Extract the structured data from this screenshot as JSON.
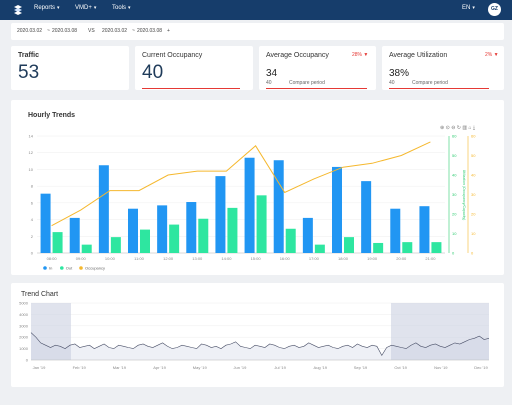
{
  "nav": {
    "reports": "Reports",
    "vmd": "VMD+",
    "tools": "Tools",
    "lang": "EN",
    "avatar": "GZ"
  },
  "filter": {
    "range1_start": "2020.03.02",
    "range1_sep": "~",
    "range1_end": "2020.03.08",
    "vs": "VS",
    "range2_start": "2020.03.02",
    "range2_sep": "~",
    "range2_end": "2020.03.08",
    "plus": "+"
  },
  "cards": {
    "traffic": {
      "title": "Traffic",
      "value": "53"
    },
    "current": {
      "title": "Current Occupancy",
      "value": "40"
    },
    "avg_occ": {
      "title": "Average Occupancy",
      "value": "34",
      "sub": "40",
      "compare": "Compare period",
      "pct": "28%"
    },
    "avg_util": {
      "title": "Average Utilization",
      "value": "38%",
      "sub": "40",
      "compare": "Compare period",
      "pct": "2%"
    }
  },
  "colors": {
    "in": "#2196f3",
    "out": "#2ee6a0",
    "occupancy": "#f5b82e",
    "alert": "#e53935",
    "nav": "#163d6b",
    "trend_fill": "#c7ccdf",
    "trend_line": "#4a5068"
  },
  "hourly": {
    "title": "Hourly Trends",
    "toolbox_icons": [
      "zoom-in-icon",
      "zoom-reset-icon",
      "zoom-out-icon",
      "restore-icon",
      "bar-chart-icon",
      "home-icon",
      "save-icon"
    ]
  },
  "trend": {
    "title": "Trend Chart"
  },
  "chart_data": [
    {
      "type": "bar",
      "title": "Hourly Trends",
      "categories": [
        "08:00",
        "09:00",
        "10:00",
        "11:00",
        "12:00",
        "13:00",
        "14:00",
        "15:00",
        "16:00",
        "17:00",
        "18:00",
        "19:00",
        "20:00",
        "21:00"
      ],
      "tick_labels": [
        "08:00",
        "09:00",
        "10:00",
        "11:00",
        "12:00",
        "13:00",
        "14:00",
        "15:00",
        "16:00",
        "17:00",
        "18:00",
        "19:00",
        "20:00",
        "21:00"
      ],
      "series": [
        {
          "name": "In",
          "type": "bar",
          "axis": "left",
          "values": [
            7.1,
            4.2,
            10.5,
            5.3,
            5.7,
            6.1,
            9.2,
            11.4,
            11.1,
            4.2,
            10.3,
            8.6,
            5.3,
            5.6
          ]
        },
        {
          "name": "Out",
          "type": "bar",
          "axis": "left",
          "values": [
            2.5,
            1.0,
            1.9,
            2.8,
            3.4,
            4.1,
            5.4,
            6.9,
            2.9,
            1.0,
            1.9,
            1.2,
            1.3,
            1.3
          ]
        },
        {
          "name": "Occupancy",
          "type": "line",
          "axis": "right",
          "values": [
            14,
            22,
            32,
            32,
            40,
            42,
            42,
            55,
            31,
            38,
            44,
            46,
            50,
            57
          ]
        }
      ],
      "left_axis": {
        "ylim": [
          0,
          14
        ],
        "ticks": [
          0,
          2,
          4,
          6,
          8,
          10,
          12,
          14
        ]
      },
      "right_axis_1": {
        "label": "Utilization (Occupancy/Capacity)",
        "ylim": [
          0,
          60
        ],
        "ticks": [
          0,
          10,
          20,
          30,
          40,
          50,
          60
        ]
      },
      "right_axis_2": {
        "ylim": [
          0,
          60
        ],
        "ticks": [
          0,
          10,
          20,
          30,
          40,
          50,
          60
        ]
      },
      "legend": [
        "In",
        "Out",
        "Occupancy"
      ],
      "legend_position": "bottom-left"
    },
    {
      "type": "area",
      "title": "Trend Chart",
      "ylim": [
        0,
        5000
      ],
      "y_ticks": [
        0,
        1000,
        2000,
        3000,
        4000,
        5000
      ],
      "x_labels": [
        "Jan '19",
        "Feb '19",
        "Mar '19",
        "Apr '19",
        "May '19",
        "Jun '19",
        "Jul '19",
        "Aug '19",
        "Sep '19",
        "Oct '19",
        "Nov '19",
        "Dec '19"
      ],
      "values": [
        2400,
        2000,
        1500,
        1300,
        1100,
        1300,
        1200,
        1000,
        1300,
        1400,
        1100,
        1200,
        1300,
        1000,
        1200,
        1400,
        1100,
        1000,
        1300,
        1200,
        1100,
        1000,
        1300,
        1400,
        1200,
        1100,
        1300,
        1500,
        1200,
        1000,
        1100,
        1300,
        1200,
        1100,
        1000,
        1400,
        1300,
        1100,
        1200,
        1000,
        1300,
        1400,
        1600,
        1200,
        1100,
        1000,
        1300,
        1200,
        1100,
        1400,
        1300,
        1100,
        1000,
        1200,
        1300,
        1100,
        1200,
        1500,
        1300,
        1100,
        1200,
        1300,
        1100,
        1000,
        1200,
        1300,
        1100,
        1400,
        1200,
        1100,
        1300,
        1200,
        400,
        1100,
        1300,
        1200,
        1100,
        1000,
        1300,
        1500,
        1200,
        1100,
        1300,
        1400,
        1200,
        1100,
        1300,
        1500,
        1400,
        1600,
        1800,
        1900,
        2100,
        1800,
        1900
      ],
      "grid": true
    }
  ]
}
